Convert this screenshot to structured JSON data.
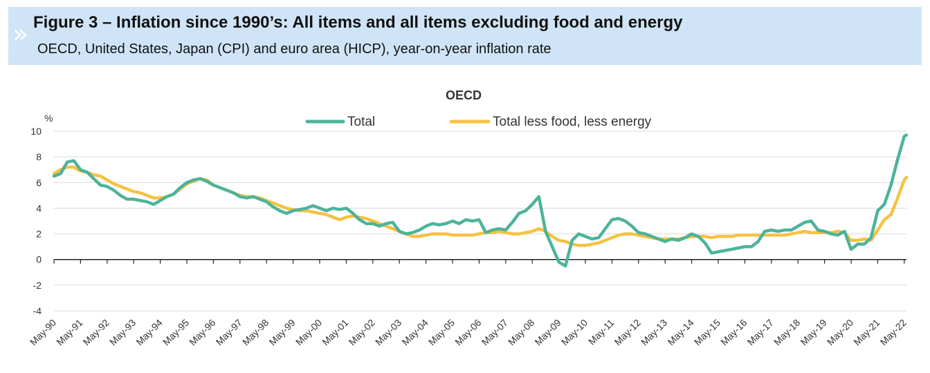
{
  "header": {
    "title": "Figure 3 – Inflation since 1990’s: All items and all items excluding food and energy",
    "subtitle": "OECD, United States, Japan (CPI) and euro area (HICP), year-on-year inflation rate",
    "chevron_glyph": "»",
    "chevron_icon": "double-chevron-icon",
    "background_color": "#cfe4f6"
  },
  "chart_data": {
    "type": "line",
    "title": "OECD",
    "ylabel": "%",
    "xlabel": "",
    "ylim": [
      -4,
      10
    ],
    "yticks": [
      10,
      8,
      6,
      4,
      2,
      0,
      -2,
      -4
    ],
    "grid": true,
    "legend_placement": "top",
    "x_start": "May-90",
    "x_end": "May-22",
    "categories": [
      "May-90",
      "May-91",
      "May-92",
      "May-93",
      "May-94",
      "May-95",
      "May-96",
      "May-97",
      "May-98",
      "May-99",
      "May-00",
      "May-01",
      "May-02",
      "May-03",
      "May-04",
      "May-05",
      "May-06",
      "May-07",
      "May-08",
      "May-09",
      "May-10",
      "May-11",
      "May-12",
      "May-13",
      "May-14",
      "May-15",
      "May-16",
      "May-17",
      "May-18",
      "May-19",
      "May-20",
      "May-21",
      "May-22"
    ],
    "series": [
      {
        "name": "Total",
        "color": "#4db39a",
        "x": [
          "1990-05",
          "1990-08",
          "1990-11",
          "1991-02",
          "1991-05",
          "1991-08",
          "1991-11",
          "1992-02",
          "1992-05",
          "1992-08",
          "1992-11",
          "1993-02",
          "1993-05",
          "1993-08",
          "1993-11",
          "1994-02",
          "1994-05",
          "1994-08",
          "1994-11",
          "1995-02",
          "1995-05",
          "1995-08",
          "1995-11",
          "1996-02",
          "1996-05",
          "1996-08",
          "1996-11",
          "1997-02",
          "1997-05",
          "1997-08",
          "1997-11",
          "1998-02",
          "1998-05",
          "1998-08",
          "1998-11",
          "1999-02",
          "1999-05",
          "1999-08",
          "1999-11",
          "2000-02",
          "2000-05",
          "2000-08",
          "2000-11",
          "2001-02",
          "2001-05",
          "2001-08",
          "2001-11",
          "2002-02",
          "2002-05",
          "2002-08",
          "2002-11",
          "2003-02",
          "2003-05",
          "2003-08",
          "2003-11",
          "2004-02",
          "2004-05",
          "2004-08",
          "2004-11",
          "2005-02",
          "2005-05",
          "2005-08",
          "2005-11",
          "2006-02",
          "2006-05",
          "2006-08",
          "2006-11",
          "2007-02",
          "2007-05",
          "2007-08",
          "2007-11",
          "2008-02",
          "2008-05",
          "2008-08",
          "2008-11",
          "2009-02",
          "2009-05",
          "2009-08",
          "2009-11",
          "2010-02",
          "2010-05",
          "2010-08",
          "2010-11",
          "2011-02",
          "2011-05",
          "2011-08",
          "2011-11",
          "2012-02",
          "2012-05",
          "2012-08",
          "2012-11",
          "2013-02",
          "2013-05",
          "2013-08",
          "2013-11",
          "2014-02",
          "2014-05",
          "2014-08",
          "2014-11",
          "2015-02",
          "2015-05",
          "2015-08",
          "2015-11",
          "2016-02",
          "2016-05",
          "2016-08",
          "2016-11",
          "2017-02",
          "2017-05",
          "2017-08",
          "2017-11",
          "2018-02",
          "2018-05",
          "2018-08",
          "2018-11",
          "2019-02",
          "2019-05",
          "2019-08",
          "2019-11",
          "2020-02",
          "2020-05",
          "2020-08",
          "2020-11",
          "2021-02",
          "2021-05",
          "2021-08",
          "2021-11",
          "2022-02",
          "2022-05",
          "2022-06"
        ],
        "values": [
          6.5,
          6.7,
          7.6,
          7.7,
          7.0,
          6.8,
          6.3,
          5.8,
          5.7,
          5.4,
          5.0,
          4.7,
          4.7,
          4.6,
          4.5,
          4.3,
          4.6,
          4.9,
          5.1,
          5.6,
          6.0,
          6.2,
          6.3,
          6.1,
          5.8,
          5.6,
          5.4,
          5.2,
          4.9,
          4.8,
          4.9,
          4.7,
          4.5,
          4.1,
          3.8,
          3.6,
          3.8,
          3.9,
          4.0,
          4.2,
          4.0,
          3.8,
          4.0,
          3.9,
          4.0,
          3.6,
          3.1,
          2.8,
          2.8,
          2.6,
          2.8,
          2.9,
          2.2,
          2.0,
          2.1,
          2.3,
          2.6,
          2.8,
          2.7,
          2.8,
          3.0,
          2.8,
          3.1,
          3.0,
          3.1,
          2.1,
          2.3,
          2.4,
          2.3,
          2.9,
          3.6,
          3.8,
          4.3,
          4.9,
          2.2,
          1.0,
          -0.2,
          -0.5,
          1.5,
          2.0,
          1.8,
          1.6,
          1.7,
          2.4,
          3.1,
          3.2,
          3.0,
          2.6,
          2.1,
          2.0,
          1.8,
          1.6,
          1.4,
          1.6,
          1.5,
          1.7,
          2.0,
          1.8,
          1.3,
          0.5,
          0.6,
          0.7,
          0.8,
          0.9,
          1.0,
          1.0,
          1.4,
          2.2,
          2.3,
          2.2,
          2.3,
          2.3,
          2.6,
          2.9,
          3.0,
          2.3,
          2.2,
          2.0,
          1.9,
          2.2,
          0.8,
          1.2,
          1.2,
          1.7,
          3.8,
          4.3,
          5.8,
          7.8,
          9.6,
          9.7
        ]
      },
      {
        "name": "Total less food, less energy",
        "color": "#f5c242",
        "x": [
          "1990-05",
          "1990-08",
          "1990-11",
          "1991-02",
          "1991-05",
          "1991-08",
          "1991-11",
          "1992-02",
          "1992-05",
          "1992-08",
          "1992-11",
          "1993-02",
          "1993-05",
          "1993-08",
          "1993-11",
          "1994-02",
          "1994-05",
          "1994-08",
          "1994-11",
          "1995-02",
          "1995-05",
          "1995-08",
          "1995-11",
          "1996-02",
          "1996-05",
          "1996-08",
          "1996-11",
          "1997-02",
          "1997-05",
          "1997-08",
          "1997-11",
          "1998-02",
          "1998-05",
          "1998-08",
          "1998-11",
          "1999-02",
          "1999-05",
          "1999-08",
          "1999-11",
          "2000-02",
          "2000-05",
          "2000-08",
          "2000-11",
          "2001-02",
          "2001-05",
          "2001-08",
          "2001-11",
          "2002-02",
          "2002-05",
          "2002-08",
          "2002-11",
          "2003-02",
          "2003-05",
          "2003-08",
          "2003-11",
          "2004-02",
          "2004-05",
          "2004-08",
          "2004-11",
          "2005-02",
          "2005-05",
          "2005-08",
          "2005-11",
          "2006-02",
          "2006-05",
          "2006-08",
          "2006-11",
          "2007-02",
          "2007-05",
          "2007-08",
          "2007-11",
          "2008-02",
          "2008-05",
          "2008-08",
          "2008-11",
          "2009-02",
          "2009-05",
          "2009-08",
          "2009-11",
          "2010-02",
          "2010-05",
          "2010-08",
          "2010-11",
          "2011-02",
          "2011-05",
          "2011-08",
          "2011-11",
          "2012-02",
          "2012-05",
          "2012-08",
          "2012-11",
          "2013-02",
          "2013-05",
          "2013-08",
          "2013-11",
          "2014-02",
          "2014-05",
          "2014-08",
          "2014-11",
          "2015-02",
          "2015-05",
          "2015-08",
          "2015-11",
          "2016-02",
          "2016-05",
          "2016-08",
          "2016-11",
          "2017-02",
          "2017-05",
          "2017-08",
          "2017-11",
          "2018-02",
          "2018-05",
          "2018-08",
          "2018-11",
          "2019-02",
          "2019-05",
          "2019-08",
          "2019-11",
          "2020-02",
          "2020-05",
          "2020-08",
          "2020-11",
          "2021-02",
          "2021-05",
          "2021-08",
          "2021-11",
          "2022-02",
          "2022-05",
          "2022-06"
        ],
        "values": [
          6.7,
          7.0,
          7.2,
          7.2,
          6.9,
          6.8,
          6.6,
          6.5,
          6.2,
          5.9,
          5.7,
          5.5,
          5.3,
          5.2,
          5.0,
          4.8,
          4.8,
          4.9,
          5.1,
          5.5,
          5.9,
          6.1,
          6.3,
          6.2,
          5.8,
          5.6,
          5.4,
          5.2,
          5.0,
          4.9,
          4.9,
          4.8,
          4.6,
          4.4,
          4.2,
          4.0,
          3.9,
          3.8,
          3.8,
          3.7,
          3.6,
          3.5,
          3.3,
          3.1,
          3.3,
          3.4,
          3.3,
          3.2,
          3.0,
          2.8,
          2.6,
          2.4,
          2.2,
          2.0,
          1.8,
          1.8,
          1.9,
          2.0,
          2.0,
          2.0,
          1.9,
          1.9,
          1.9,
          1.9,
          2.0,
          2.1,
          2.1,
          2.2,
          2.1,
          2.0,
          2.0,
          2.1,
          2.2,
          2.4,
          2.2,
          1.8,
          1.5,
          1.4,
          1.2,
          1.1,
          1.1,
          1.2,
          1.3,
          1.5,
          1.7,
          1.9,
          2.0,
          2.0,
          1.9,
          1.8,
          1.7,
          1.6,
          1.6,
          1.6,
          1.6,
          1.7,
          1.8,
          1.8,
          1.8,
          1.7,
          1.8,
          1.8,
          1.8,
          1.9,
          1.9,
          1.9,
          1.9,
          1.9,
          1.9,
          1.9,
          1.9,
          2.0,
          2.1,
          2.2,
          2.1,
          2.1,
          2.1,
          2.1,
          2.2,
          2.1,
          1.5,
          1.5,
          1.6,
          1.5,
          2.3,
          3.1,
          3.5,
          4.8,
          6.2,
          6.4
        ]
      }
    ]
  }
}
